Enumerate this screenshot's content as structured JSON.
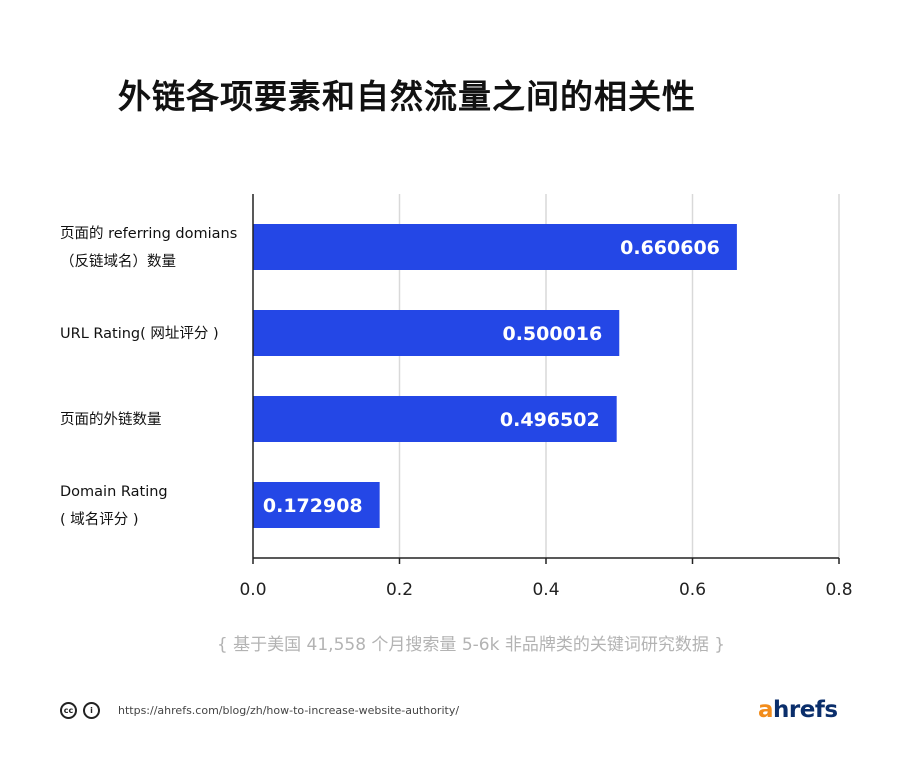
{
  "chart_data": {
    "type": "bar",
    "orientation": "horizontal",
    "title": "外链各项要素和自然流量之间的相关性",
    "categories": [
      [
        "页面的 referring domians",
        "（反链域名）数量"
      ],
      [
        "URL Rating( 网址评分 )"
      ],
      [
        "页面的外链数量"
      ],
      [
        "Domain Rating",
        "( 域名评分 )"
      ]
    ],
    "values": [
      0.660606,
      0.500016,
      0.496502,
      0.172908
    ],
    "value_labels": [
      "0.660606",
      "0.500016",
      "0.496502",
      "0.172908"
    ],
    "xlim": [
      0,
      0.8
    ],
    "xticks": [
      "0.0",
      "0.2",
      "0.4",
      "0.6",
      "0.8"
    ],
    "bar_color": "#2447e6",
    "grid": "vertical",
    "note": "{ 基于美国 41,558 个月搜索量 5-6k 非品牌类的关键词研究数据 }"
  },
  "footer": {
    "icons": [
      "creative-commons-icon",
      "attribution-icon"
    ],
    "cc_glyph": "cc",
    "by_glyph": "i",
    "url": "https://ahrefs.com/blog/zh/how-to-increase-website-authority/",
    "brand_prefix": "a",
    "brand_rest": "hrefs",
    "brand_colors": {
      "a": "#f28c1b",
      "rest": "#0a2e6b"
    }
  }
}
